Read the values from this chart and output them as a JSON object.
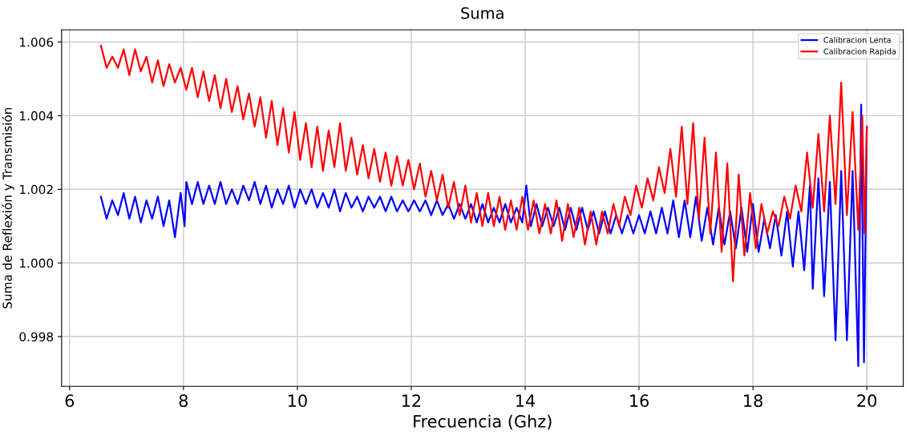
{
  "chart_data": {
    "type": "line",
    "title": "Suma",
    "xlabel": "Frecuencia (Ghz)",
    "ylabel": "Suma de Reflexión y Transmisión",
    "xlim": [
      5.86,
      20.64
    ],
    "xticks": [
      6,
      8,
      10,
      12,
      14,
      16,
      18,
      20
    ],
    "ylim": [
      0.99665,
      1.00633
    ],
    "yticks": [
      {
        "value": 0.998,
        "label": "0.998"
      },
      {
        "value": 1.0,
        "label": "1.000"
      },
      {
        "value": 1.002,
        "label": "1.002"
      },
      {
        "value": 1.004,
        "label": "1.004"
      },
      {
        "value": 1.006,
        "label": "1.006"
      }
    ],
    "grid": true,
    "legend": "top right",
    "line_style": "solid",
    "series": [
      {
        "name": "Calibracion Lenta",
        "color": "#0000ff",
        "x": [
          6.55,
          6.65,
          6.75,
          6.85,
          6.95,
          7.05,
          7.15,
          7.25,
          7.35,
          7.45,
          7.55,
          7.65,
          7.75,
          7.85,
          7.95,
          8.02,
          8.05,
          8.15,
          8.25,
          8.35,
          8.45,
          8.55,
          8.65,
          8.75,
          8.85,
          8.95,
          9.05,
          9.15,
          9.25,
          9.35,
          9.45,
          9.55,
          9.65,
          9.75,
          9.85,
          9.95,
          10.05,
          10.15,
          10.25,
          10.35,
          10.45,
          10.55,
          10.65,
          10.75,
          10.85,
          10.95,
          11.05,
          11.15,
          11.25,
          11.35,
          11.45,
          11.55,
          11.65,
          11.75,
          11.85,
          11.95,
          12.05,
          12.15,
          12.25,
          12.35,
          12.45,
          12.55,
          12.65,
          12.75,
          12.85,
          12.95,
          13.05,
          13.15,
          13.25,
          13.35,
          13.45,
          13.55,
          13.65,
          13.75,
          13.85,
          13.95,
          14.02,
          14.1,
          14.2,
          14.3,
          14.4,
          14.5,
          14.6,
          14.7,
          14.8,
          14.9,
          15.0,
          15.1,
          15.2,
          15.3,
          15.4,
          15.5,
          15.6,
          15.7,
          15.8,
          15.9,
          16.0,
          16.1,
          16.2,
          16.3,
          16.4,
          16.5,
          16.6,
          16.7,
          16.8,
          16.9,
          17.0,
          17.1,
          17.2,
          17.3,
          17.4,
          17.5,
          17.6,
          17.7,
          17.8,
          17.9,
          18.0,
          18.1,
          18.2,
          18.3,
          18.4,
          18.5,
          18.6,
          18.7,
          18.8,
          18.9,
          19.0,
          19.05,
          19.15,
          19.25,
          19.35,
          19.45,
          19.55,
          19.65,
          19.75,
          19.85,
          19.9,
          19.95,
          20.0
        ],
        "values": [
          1.0018,
          1.0012,
          1.0017,
          1.0013,
          1.0019,
          1.0012,
          1.0018,
          1.0011,
          1.0017,
          1.0012,
          1.0018,
          1.001,
          1.0017,
          1.0007,
          1.0019,
          1.001,
          1.0022,
          1.0016,
          1.0022,
          1.0016,
          1.0021,
          1.0016,
          1.0022,
          1.0016,
          1.002,
          1.0016,
          1.0021,
          1.0017,
          1.0022,
          1.0016,
          1.0021,
          1.0015,
          1.002,
          1.0016,
          1.0021,
          1.0015,
          1.002,
          1.0016,
          1.002,
          1.0015,
          1.0019,
          1.0015,
          1.002,
          1.0014,
          1.0019,
          1.0015,
          1.0018,
          1.0014,
          1.0018,
          1.0015,
          1.0018,
          1.0014,
          1.0018,
          1.0014,
          1.0017,
          1.0014,
          1.0017,
          1.0014,
          1.0017,
          1.0013,
          1.0017,
          1.0013,
          1.0016,
          1.0012,
          1.0016,
          1.0012,
          1.0016,
          1.0011,
          1.0016,
          1.0011,
          1.0015,
          1.0011,
          1.0016,
          1.0011,
          1.0015,
          1.0011,
          1.0021,
          1.001,
          1.0016,
          1.001,
          1.0015,
          1.001,
          1.0015,
          1.0009,
          1.0015,
          1.0009,
          1.0015,
          1.0009,
          1.0014,
          1.0008,
          1.0014,
          1.0008,
          1.0013,
          1.0008,
          1.0013,
          1.0008,
          1.0013,
          1.0008,
          1.0014,
          1.0008,
          1.0015,
          1.0008,
          1.0017,
          1.0007,
          1.0017,
          1.0007,
          1.0018,
          1.0006,
          1.0015,
          1.0005,
          1.0015,
          1.0005,
          1.0014,
          1.0004,
          1.0015,
          1.0003,
          1.0016,
          1.0003,
          1.0012,
          1.0004,
          1.0013,
          1.0002,
          1.0014,
          0.9999,
          1.0014,
          0.9998,
          1.0021,
          0.9993,
          1.0023,
          0.9991,
          1.0022,
          0.9979,
          1.0025,
          0.9979,
          1.0025,
          0.9972,
          1.0043,
          0.9973,
          1.0037
        ]
      },
      {
        "name": "Calibracion Rapida",
        "color": "#ff0000",
        "x": [
          6.55,
          6.65,
          6.75,
          6.85,
          6.95,
          7.05,
          7.15,
          7.25,
          7.35,
          7.45,
          7.55,
          7.65,
          7.75,
          7.85,
          7.95,
          8.05,
          8.15,
          8.25,
          8.35,
          8.45,
          8.55,
          8.65,
          8.75,
          8.85,
          8.95,
          9.05,
          9.15,
          9.25,
          9.35,
          9.45,
          9.55,
          9.65,
          9.75,
          9.85,
          9.95,
          10.05,
          10.15,
          10.25,
          10.35,
          10.45,
          10.55,
          10.65,
          10.75,
          10.85,
          10.95,
          11.05,
          11.15,
          11.25,
          11.35,
          11.45,
          11.55,
          11.65,
          11.75,
          11.85,
          11.95,
          12.05,
          12.15,
          12.25,
          12.35,
          12.45,
          12.55,
          12.65,
          12.75,
          12.85,
          12.95,
          13.05,
          13.15,
          13.25,
          13.35,
          13.45,
          13.55,
          13.65,
          13.75,
          13.85,
          13.95,
          14.05,
          14.15,
          14.25,
          14.35,
          14.45,
          14.55,
          14.65,
          14.75,
          14.85,
          14.95,
          15.05,
          15.15,
          15.25,
          15.35,
          15.45,
          15.55,
          15.65,
          15.75,
          15.85,
          15.95,
          16.05,
          16.15,
          16.25,
          16.35,
          16.45,
          16.55,
          16.65,
          16.75,
          16.85,
          16.95,
          17.05,
          17.15,
          17.25,
          17.35,
          17.45,
          17.55,
          17.65,
          17.75,
          17.85,
          17.95,
          18.05,
          18.15,
          18.25,
          18.35,
          18.45,
          18.55,
          18.65,
          18.75,
          18.85,
          18.95,
          19.05,
          19.15,
          19.25,
          19.35,
          19.45,
          19.55,
          19.65,
          19.75,
          19.85,
          19.92,
          19.96,
          20.0
        ],
        "values": [
          1.0059,
          1.0053,
          1.0056,
          1.0053,
          1.0058,
          1.0051,
          1.0058,
          1.0052,
          1.0056,
          1.0049,
          1.0055,
          1.0048,
          1.0054,
          1.0049,
          1.0053,
          1.0047,
          1.0053,
          1.0045,
          1.0052,
          1.0044,
          1.0051,
          1.0042,
          1.005,
          1.0041,
          1.0048,
          1.0039,
          1.0046,
          1.0037,
          1.0045,
          1.0034,
          1.0044,
          1.0032,
          1.0042,
          1.003,
          1.0041,
          1.0028,
          1.0038,
          1.0026,
          1.0037,
          1.0025,
          1.0036,
          1.0026,
          1.0038,
          1.0025,
          1.0034,
          1.0024,
          1.0032,
          1.0023,
          1.0031,
          1.0022,
          1.003,
          1.0021,
          1.0029,
          1.0021,
          1.0028,
          1.002,
          1.0027,
          1.0018,
          1.0025,
          1.0017,
          1.0024,
          1.0015,
          1.0022,
          1.0013,
          1.0021,
          1.0011,
          1.0019,
          1.001,
          1.0019,
          1.001,
          1.0018,
          1.0009,
          1.0017,
          1.0009,
          1.0018,
          1.0009,
          1.0017,
          1.0008,
          1.0016,
          1.0008,
          1.0017,
          1.0006,
          1.0016,
          1.0007,
          1.0015,
          1.0005,
          1.0014,
          1.0005,
          1.0014,
          1.0008,
          1.0016,
          1.001,
          1.0018,
          1.0013,
          1.0021,
          1.0015,
          1.0023,
          1.0017,
          1.0026,
          1.0019,
          1.0031,
          1.0018,
          1.0037,
          1.0016,
          1.0038,
          1.0012,
          1.0034,
          1.0008,
          1.003,
          1.0003,
          1.0027,
          0.9995,
          1.0024,
          1.0002,
          1.0019,
          1.0004,
          1.0016,
          1.0008,
          1.0014,
          1.001,
          1.0018,
          1.0012,
          1.0021,
          1.0014,
          1.003,
          1.0015,
          1.0035,
          1.0014,
          1.004,
          1.0016,
          1.0049,
          1.0013,
          1.0041,
          1.0009,
          1.004,
          1.0008,
          1.0037
        ]
      }
    ]
  }
}
